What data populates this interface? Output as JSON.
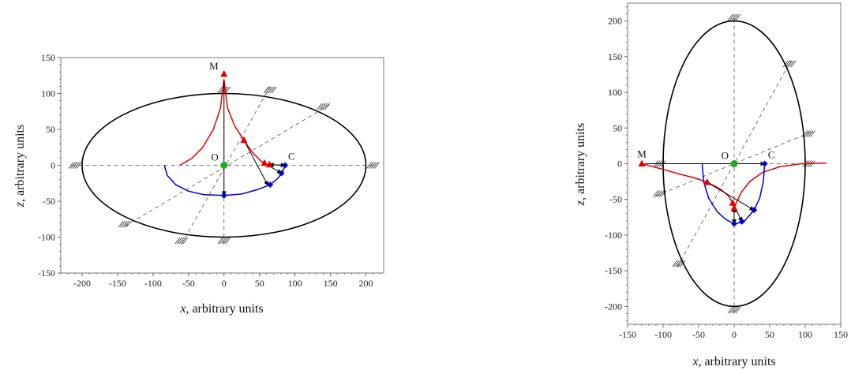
{
  "chart_data": [
    {
      "type": "line",
      "xlabel_var": "x",
      "xlabel_text": ", arbitrary units",
      "ylabel_var": "z",
      "ylabel_text": ", arbitrary units",
      "xlim": [
        -230,
        225
      ],
      "ylim": [
        -150,
        150
      ],
      "xticks": [
        -200,
        -150,
        -100,
        -50,
        0,
        50,
        100,
        150,
        200
      ],
      "yticks": [
        -150,
        -100,
        -50,
        0,
        50,
        100,
        150
      ],
      "ellipse": {
        "a": 200,
        "b": 100
      },
      "axes_grid_lines": [
        {
          "from": [
            -215,
            0
          ],
          "to": [
            215,
            0
          ]
        },
        {
          "from": [
            0,
            -110
          ],
          "to": [
            0,
            110
          ]
        },
        {
          "from": [
            -140,
            -85
          ],
          "to": [
            150,
            85
          ]
        },
        {
          "from": [
            -60,
            -110
          ],
          "to": [
            65,
            110
          ]
        }
      ],
      "hatch_marks": [
        [
          -210,
          0
        ],
        [
          210,
          0
        ],
        [
          0,
          105
        ],
        [
          0,
          -105
        ],
        [
          -140,
          -82
        ],
        [
          140,
          82
        ],
        [
          -60,
          -105
        ],
        [
          65,
          105
        ]
      ],
      "points": [
        {
          "label": "M",
          "x": 0,
          "y": 127
        },
        {
          "label": "O",
          "x": 0,
          "y": 0
        },
        {
          "label": "C",
          "x": 86,
          "y": 0
        }
      ],
      "series": [
        {
          "color": "#e00000",
          "points": [
            [
              -62,
              0
            ],
            [
              -45,
              10
            ],
            [
              -30,
              25
            ],
            [
              -15,
              50
            ],
            [
              -5,
              80
            ],
            [
              0,
              120
            ],
            [
              5,
              80
            ],
            [
              15,
              55
            ],
            [
              28,
              35
            ],
            [
              40,
              18
            ],
            [
              52,
              6
            ],
            [
              58,
              2
            ],
            [
              63,
              0
            ]
          ]
        },
        {
          "color": "#0000d0",
          "points": [
            [
              -84,
              0
            ],
            [
              -80,
              -14
            ],
            [
              -68,
              -27
            ],
            [
              -50,
              -36
            ],
            [
              -28,
              -41
            ],
            [
              0,
              -42
            ],
            [
              25,
              -40
            ],
            [
              47,
              -34
            ],
            [
              65,
              -27
            ],
            [
              76,
              -18
            ],
            [
              82,
              -10
            ],
            [
              85,
              -3
            ],
            [
              86,
              0
            ]
          ]
        }
      ],
      "red_markers": [
        [
          0,
          127
        ],
        [
          28,
          35
        ],
        [
          57,
          3
        ],
        [
          64,
          1
        ]
      ],
      "blue_markers": [
        [
          0,
          -42
        ],
        [
          65,
          -27
        ],
        [
          81,
          -11
        ],
        [
          86,
          0
        ]
      ],
      "green_markers": [
        [
          0,
          0
        ]
      ],
      "arrows": [
        {
          "from": [
            0,
            118
          ],
          "to": [
            0,
            -42
          ]
        },
        {
          "from": [
            28,
            35
          ],
          "to": [
            62,
            -28
          ]
        },
        {
          "from": [
            57,
            3
          ],
          "to": [
            81,
            -11
          ]
        },
        {
          "from": [
            64,
            1
          ],
          "to": [
            86,
            0
          ]
        },
        {
          "from": [
            86,
            0
          ],
          "to": [
            64,
            1
          ]
        }
      ]
    },
    {
      "type": "line",
      "xlabel_var": "x",
      "xlabel_text": ", arbitrary units",
      "ylabel_var": "z",
      "ylabel_text": ", arbitrary units",
      "xlim": [
        -150,
        150
      ],
      "ylim": [
        -225,
        225
      ],
      "xticks": [
        -150,
        -100,
        -50,
        0,
        50,
        100,
        150
      ],
      "yticks": [
        -200,
        -150,
        -100,
        -50,
        0,
        50,
        100,
        150,
        200
      ],
      "ellipse": {
        "a": 100,
        "b": 200
      },
      "axes_grid_lines": [
        {
          "from": [
            -110,
            0
          ],
          "to": [
            110,
            0
          ]
        },
        {
          "from": [
            0,
            -210
          ],
          "to": [
            0,
            210
          ]
        },
        {
          "from": [
            -110,
            -45
          ],
          "to": [
            110,
            45
          ]
        },
        {
          "from": [
            -80,
            -145
          ],
          "to": [
            80,
            145
          ]
        }
      ],
      "hatch_marks": [
        [
          -105,
          0
        ],
        [
          105,
          0
        ],
        [
          0,
          205
        ],
        [
          0,
          -205
        ],
        [
          -105,
          -42
        ],
        [
          105,
          42
        ],
        [
          -78,
          -140
        ],
        [
          78,
          140
        ]
      ],
      "points": [
        {
          "label": "M",
          "x": -130,
          "y": 0
        },
        {
          "label": "O",
          "x": 0,
          "y": 0
        },
        {
          "label": "C",
          "x": 43,
          "y": 0
        }
      ],
      "series": [
        {
          "color": "#e00000",
          "points": [
            [
              -130,
              0
            ],
            [
              -100,
              -8
            ],
            [
              -75,
              -15
            ],
            [
              -55,
              -20
            ],
            [
              -38,
              -26
            ],
            [
              -20,
              -35
            ],
            [
              -8,
              -45
            ],
            [
              -2,
              -55
            ],
            [
              0,
              -62
            ],
            [
              3,
              -55
            ],
            [
              10,
              -40
            ],
            [
              22,
              -25
            ],
            [
              40,
              -12
            ],
            [
              65,
              -4
            ],
            [
              95,
              0
            ],
            [
              130,
              1
            ]
          ]
        },
        {
          "color": "#0000d0",
          "points": [
            [
              -45,
              0
            ],
            [
              -43,
              -25
            ],
            [
              -36,
              -48
            ],
            [
              -24,
              -67
            ],
            [
              -12,
              -78
            ],
            [
              0,
              -84
            ],
            [
              13,
              -82
            ],
            [
              28,
              -65
            ],
            [
              36,
              -48
            ],
            [
              41,
              -25
            ],
            [
              43,
              0
            ]
          ]
        }
      ],
      "red_markers": [
        [
          -130,
          0
        ],
        [
          -38,
          -26
        ],
        [
          -2,
          -55
        ],
        [
          0,
          -62
        ]
      ],
      "blue_markers": [
        [
          0,
          -84
        ],
        [
          11,
          -81
        ],
        [
          28,
          -65
        ],
        [
          43,
          0
        ]
      ],
      "green_markers": [
        [
          0,
          0
        ]
      ],
      "arrows": [
        {
          "from": [
            -125,
            0
          ],
          "to": [
            43,
            0
          ]
        },
        {
          "from": [
            -38,
            -26
          ],
          "to": [
            28,
            -65
          ]
        },
        {
          "from": [
            -2,
            -55
          ],
          "to": [
            11,
            -81
          ]
        },
        {
          "from": [
            0,
            -62
          ],
          "to": [
            0,
            -84
          ]
        },
        {
          "from": [
            0,
            -84
          ],
          "to": [
            0,
            -62
          ]
        }
      ]
    }
  ]
}
